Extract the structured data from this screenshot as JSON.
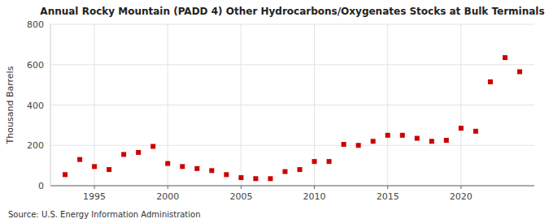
{
  "chart_data": {
    "type": "scatter",
    "title": "Annual Rocky Mountain (PADD 4) Other Hydrocarbons/Oxygenates Stocks at Bulk Terminals",
    "ylabel": "Thousand Barrels",
    "annotations": [
      "Source: U.S. Energy Information Administration"
    ],
    "color": "#cc0000",
    "marker": "square",
    "grid": true,
    "xlim": [
      1992,
      2025
    ],
    "ylim": [
      0,
      800
    ],
    "yticks": [
      0,
      200,
      400,
      600,
      800
    ],
    "xticks": [
      1995,
      2000,
      2005,
      2010,
      2015,
      2020
    ],
    "x": [
      1993,
      1994,
      1995,
      1996,
      1997,
      1998,
      1999,
      2000,
      2001,
      2002,
      2003,
      2004,
      2005,
      2006,
      2007,
      2008,
      2009,
      2010,
      2011,
      2012,
      2013,
      2014,
      2015,
      2016,
      2017,
      2018,
      2019,
      2020,
      2021,
      2022,
      2023,
      2024
    ],
    "values": [
      55,
      130,
      95,
      80,
      155,
      165,
      195,
      110,
      95,
      85,
      75,
      55,
      40,
      35,
      35,
      70,
      80,
      120,
      120,
      205,
      200,
      220,
      250,
      250,
      235,
      220,
      225,
      285,
      270,
      515,
      635,
      565
    ]
  }
}
